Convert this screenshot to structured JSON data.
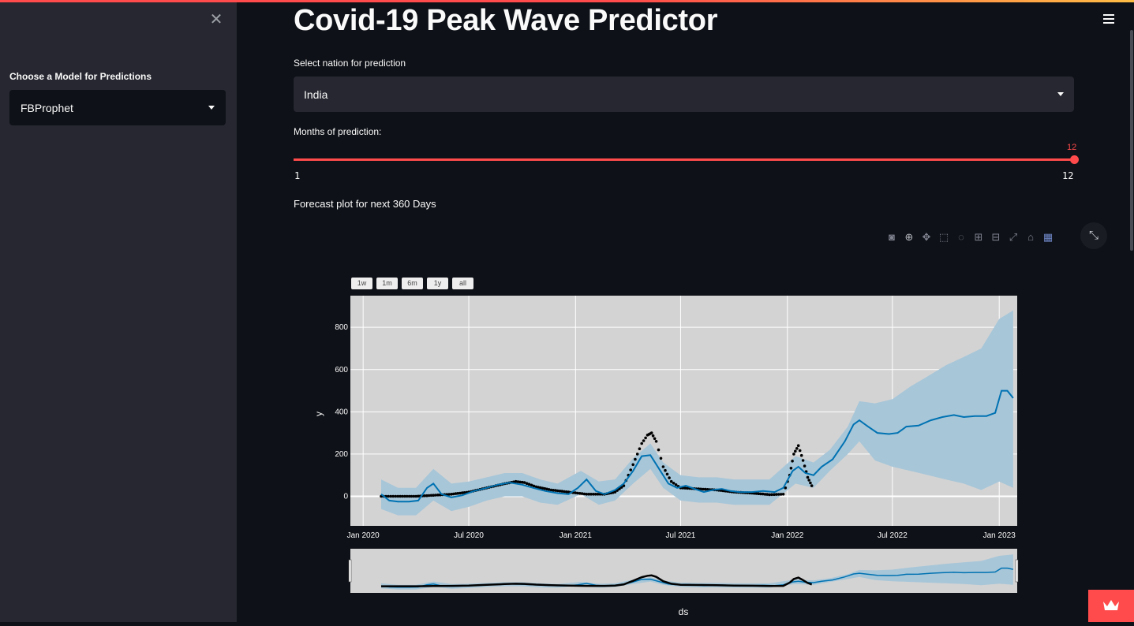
{
  "app": {
    "title": "Covid-19 Peak Wave Predictor"
  },
  "sidebar": {
    "model_label": "Choose a Model for Predictions",
    "model_selected": "FBProphet"
  },
  "main": {
    "nation_label": "Select nation for prediction",
    "nation_selected": "India",
    "months_label": "Months of prediction:",
    "slider": {
      "min": "1",
      "max": "12",
      "value": "12"
    },
    "forecast_caption": "Forecast plot for next 360 Days"
  },
  "plot_toolbar": {
    "icons": [
      "camera-icon",
      "zoom-icon",
      "pan-icon",
      "box-select-icon",
      "lasso-icon",
      "zoom-in-icon",
      "zoom-out-icon",
      "autoscale-icon",
      "reset-axes-icon",
      "plotly-logo-icon"
    ]
  },
  "range_buttons": [
    "1w",
    "1m",
    "6m",
    "1y",
    "all"
  ],
  "chart_data": {
    "type": "line",
    "xlabel": "ds",
    "ylabel": "y",
    "x_ticks": [
      "Jan 2020",
      "Jul 2020",
      "Jan 2021",
      "Jul 2021",
      "Jan 2022",
      "Jul 2022",
      "Jan 2023"
    ],
    "y_ticks": [
      "0",
      "200",
      "400",
      "600",
      "800"
    ],
    "ylim": [
      -140,
      950
    ],
    "xlim": [
      "2019-12-10",
      "2023-02-01"
    ],
    "colors": {
      "forecast": "#0072b2",
      "band": "#a7c6d8",
      "observed": "#000000",
      "plot_bg": "#d3d3d3"
    },
    "series": [
      {
        "name": "",
        "role": "forecast",
        "points": [
          [
            "2020-02-01",
            10
          ],
          [
            "2020-02-15",
            -20
          ],
          [
            "2020-03-01",
            -25
          ],
          [
            "2020-03-20",
            -25
          ],
          [
            "2020-04-05",
            -20
          ],
          [
            "2020-04-20",
            40
          ],
          [
            "2020-05-01",
            60
          ],
          [
            "2020-05-15",
            10
          ],
          [
            "2020-06-01",
            -5
          ],
          [
            "2020-06-20",
            5
          ],
          [
            "2020-07-10",
            25
          ],
          [
            "2020-08-01",
            40
          ],
          [
            "2020-08-20",
            55
          ],
          [
            "2020-09-10",
            65
          ],
          [
            "2020-10-01",
            55
          ],
          [
            "2020-10-20",
            40
          ],
          [
            "2020-11-10",
            25
          ],
          [
            "2020-12-01",
            15
          ],
          [
            "2020-12-20",
            10
          ],
          [
            "2021-01-05",
            40
          ],
          [
            "2021-01-20",
            80
          ],
          [
            "2021-02-05",
            25
          ],
          [
            "2021-02-20",
            10
          ],
          [
            "2021-03-10",
            30
          ],
          [
            "2021-03-25",
            60
          ],
          [
            "2021-04-10",
            120
          ],
          [
            "2021-04-25",
            190
          ],
          [
            "2021-05-10",
            195
          ],
          [
            "2021-05-25",
            130
          ],
          [
            "2021-06-10",
            60
          ],
          [
            "2021-06-25",
            40
          ],
          [
            "2021-07-10",
            50
          ],
          [
            "2021-07-25",
            35
          ],
          [
            "2021-08-10",
            20
          ],
          [
            "2021-08-25",
            30
          ],
          [
            "2021-09-10",
            35
          ],
          [
            "2021-09-25",
            25
          ],
          [
            "2021-10-10",
            20
          ],
          [
            "2021-11-01",
            20
          ],
          [
            "2021-11-20",
            25
          ],
          [
            "2021-12-10",
            20
          ],
          [
            "2021-12-25",
            40
          ],
          [
            "2022-01-10",
            120
          ],
          [
            "2022-01-20",
            140
          ],
          [
            "2022-02-01",
            110
          ],
          [
            "2022-02-15",
            100
          ],
          [
            "2022-03-01",
            140
          ],
          [
            "2022-03-20",
            175
          ],
          [
            "2022-04-10",
            260
          ],
          [
            "2022-04-25",
            340
          ],
          [
            "2022-05-05",
            360
          ],
          [
            "2022-05-20",
            330
          ],
          [
            "2022-06-05",
            300
          ],
          [
            "2022-06-25",
            295
          ],
          [
            "2022-07-10",
            300
          ],
          [
            "2022-07-25",
            330
          ],
          [
            "2022-08-15",
            335
          ],
          [
            "2022-09-05",
            360
          ],
          [
            "2022-09-25",
            375
          ],
          [
            "2022-10-15",
            385
          ],
          [
            "2022-11-01",
            375
          ],
          [
            "2022-11-20",
            380
          ],
          [
            "2022-12-10",
            380
          ],
          [
            "2022-12-25",
            395
          ],
          [
            "2023-01-05",
            500
          ],
          [
            "2023-01-15",
            500
          ],
          [
            "2023-01-25",
            465
          ]
        ]
      },
      {
        "name": "",
        "role": "observed",
        "points": [
          [
            "2020-02-01",
            0
          ],
          [
            "2020-03-01",
            0
          ],
          [
            "2020-04-01",
            0
          ],
          [
            "2020-05-01",
            5
          ],
          [
            "2020-06-01",
            10
          ],
          [
            "2020-07-01",
            20
          ],
          [
            "2020-08-01",
            40
          ],
          [
            "2020-09-01",
            60
          ],
          [
            "2020-09-20",
            70
          ],
          [
            "2020-10-05",
            65
          ],
          [
            "2020-10-25",
            45
          ],
          [
            "2020-11-20",
            30
          ],
          [
            "2020-12-20",
            20
          ],
          [
            "2021-01-20",
            10
          ],
          [
            "2021-02-20",
            10
          ],
          [
            "2021-03-10",
            20
          ],
          [
            "2021-03-25",
            50
          ],
          [
            "2021-04-10",
            150
          ],
          [
            "2021-04-25",
            250
          ],
          [
            "2021-05-05",
            290
          ],
          [
            "2021-05-12",
            300
          ],
          [
            "2021-05-20",
            260
          ],
          [
            "2021-06-01",
            140
          ],
          [
            "2021-06-15",
            70
          ],
          [
            "2021-07-01",
            40
          ],
          [
            "2021-08-01",
            35
          ],
          [
            "2021-09-01",
            30
          ],
          [
            "2021-10-01",
            20
          ],
          [
            "2021-11-01",
            15
          ],
          [
            "2021-12-01",
            8
          ],
          [
            "2021-12-25",
            10
          ],
          [
            "2022-01-05",
            100
          ],
          [
            "2022-01-12",
            200
          ],
          [
            "2022-01-20",
            240
          ],
          [
            "2022-01-28",
            170
          ],
          [
            "2022-02-05",
            90
          ],
          [
            "2022-02-12",
            50
          ]
        ]
      },
      {
        "name": "",
        "role": "uncertainty-upper",
        "points": [
          [
            "2020-02-01",
            80
          ],
          [
            "2020-03-01",
            40
          ],
          [
            "2020-04-01",
            40
          ],
          [
            "2020-05-01",
            130
          ],
          [
            "2020-06-01",
            60
          ],
          [
            "2020-07-01",
            70
          ],
          [
            "2020-08-01",
            90
          ],
          [
            "2020-09-01",
            110
          ],
          [
            "2020-10-01",
            110
          ],
          [
            "2020-11-01",
            80
          ],
          [
            "2020-12-01",
            60
          ],
          [
            "2021-01-10",
            120
          ],
          [
            "2021-02-10",
            70
          ],
          [
            "2021-03-10",
            80
          ],
          [
            "2021-04-10",
            180
          ],
          [
            "2021-05-10",
            250
          ],
          [
            "2021-06-01",
            160
          ],
          [
            "2021-07-01",
            100
          ],
          [
            "2021-08-01",
            90
          ],
          [
            "2021-09-01",
            90
          ],
          [
            "2021-10-01",
            80
          ],
          [
            "2021-11-01",
            80
          ],
          [
            "2021-12-01",
            80
          ],
          [
            "2022-01-15",
            190
          ],
          [
            "2022-02-15",
            160
          ],
          [
            "2022-03-15",
            220
          ],
          [
            "2022-04-15",
            330
          ],
          [
            "2022-05-05",
            450
          ],
          [
            "2022-06-01",
            440
          ],
          [
            "2022-07-01",
            460
          ],
          [
            "2022-08-01",
            520
          ],
          [
            "2022-09-01",
            570
          ],
          [
            "2022-10-01",
            620
          ],
          [
            "2022-11-01",
            660
          ],
          [
            "2022-12-01",
            700
          ],
          [
            "2023-01-01",
            840
          ],
          [
            "2023-01-25",
            880
          ]
        ]
      },
      {
        "name": "",
        "role": "uncertainty-lower",
        "points": [
          [
            "2020-02-01",
            -60
          ],
          [
            "2020-03-01",
            -90
          ],
          [
            "2020-04-01",
            -90
          ],
          [
            "2020-05-01",
            -20
          ],
          [
            "2020-06-01",
            -70
          ],
          [
            "2020-07-01",
            -50
          ],
          [
            "2020-08-01",
            -20
          ],
          [
            "2020-09-01",
            0
          ],
          [
            "2020-10-01",
            0
          ],
          [
            "2020-11-01",
            -30
          ],
          [
            "2020-12-01",
            -40
          ],
          [
            "2021-01-10",
            10
          ],
          [
            "2021-02-10",
            -40
          ],
          [
            "2021-03-10",
            -20
          ],
          [
            "2021-04-10",
            60
          ],
          [
            "2021-05-10",
            130
          ],
          [
            "2021-06-01",
            40
          ],
          [
            "2021-07-01",
            -20
          ],
          [
            "2021-08-01",
            -30
          ],
          [
            "2021-09-01",
            -30
          ],
          [
            "2021-10-01",
            -40
          ],
          [
            "2021-11-01",
            -40
          ],
          [
            "2021-12-01",
            -40
          ],
          [
            "2022-01-15",
            60
          ],
          [
            "2022-02-15",
            40
          ],
          [
            "2022-03-15",
            120
          ],
          [
            "2022-04-15",
            200
          ],
          [
            "2022-05-05",
            260
          ],
          [
            "2022-06-01",
            170
          ],
          [
            "2022-07-01",
            140
          ],
          [
            "2022-08-01",
            120
          ],
          [
            "2022-09-01",
            100
          ],
          [
            "2022-10-01",
            80
          ],
          [
            "2022-11-01",
            60
          ],
          [
            "2022-12-01",
            30
          ],
          [
            "2023-01-01",
            70
          ],
          [
            "2023-01-25",
            40
          ]
        ]
      }
    ]
  }
}
